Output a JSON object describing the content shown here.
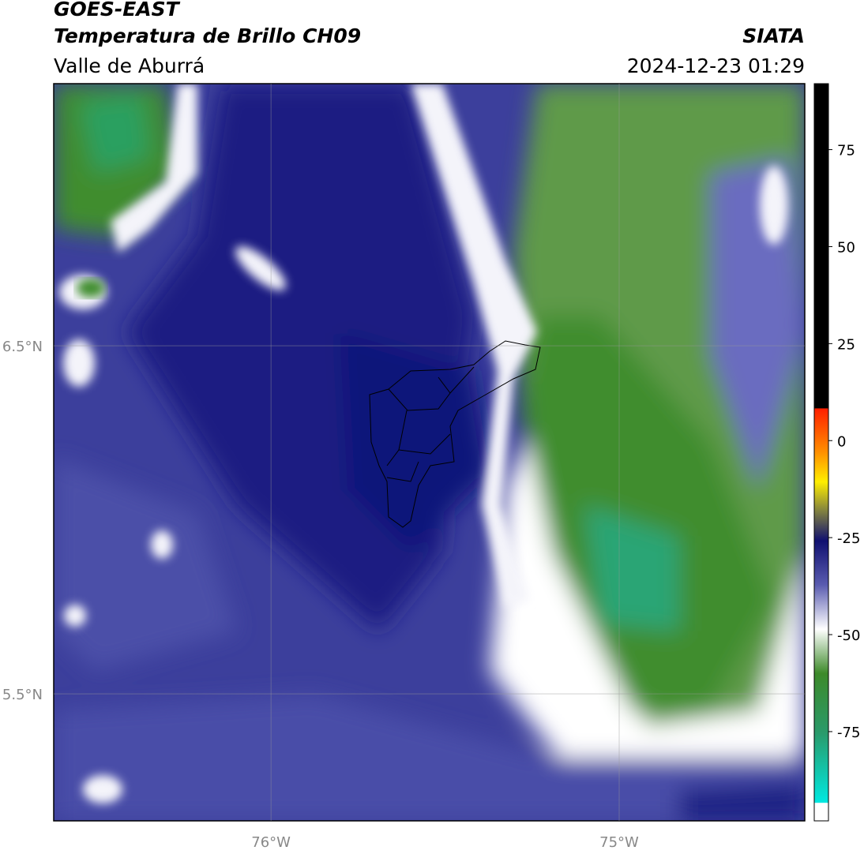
{
  "header": {
    "title": "GOES-EAST",
    "subtitle": "Temperatura de Brillo CH09",
    "region": "Valle de Aburrá",
    "source": "SIATA",
    "timestamp": "2024-12-23 01:29"
  },
  "map": {
    "latlim": [
      5.135,
      7.253
    ],
    "lonlim": [
      -76.624,
      -74.467
    ],
    "lat_ticks": [
      {
        "value": 6.5,
        "label": "6.5°N"
      },
      {
        "value": 5.5,
        "label": "5.5°N"
      }
    ],
    "lon_ticks": [
      {
        "value": -76,
        "label": "76°W"
      },
      {
        "value": -75,
        "label": "75°W"
      }
    ]
  },
  "colorbar": {
    "range": [
      -98,
      92
    ],
    "ticks": [
      75,
      50,
      25,
      0,
      -25,
      -50,
      -75
    ]
  }
}
